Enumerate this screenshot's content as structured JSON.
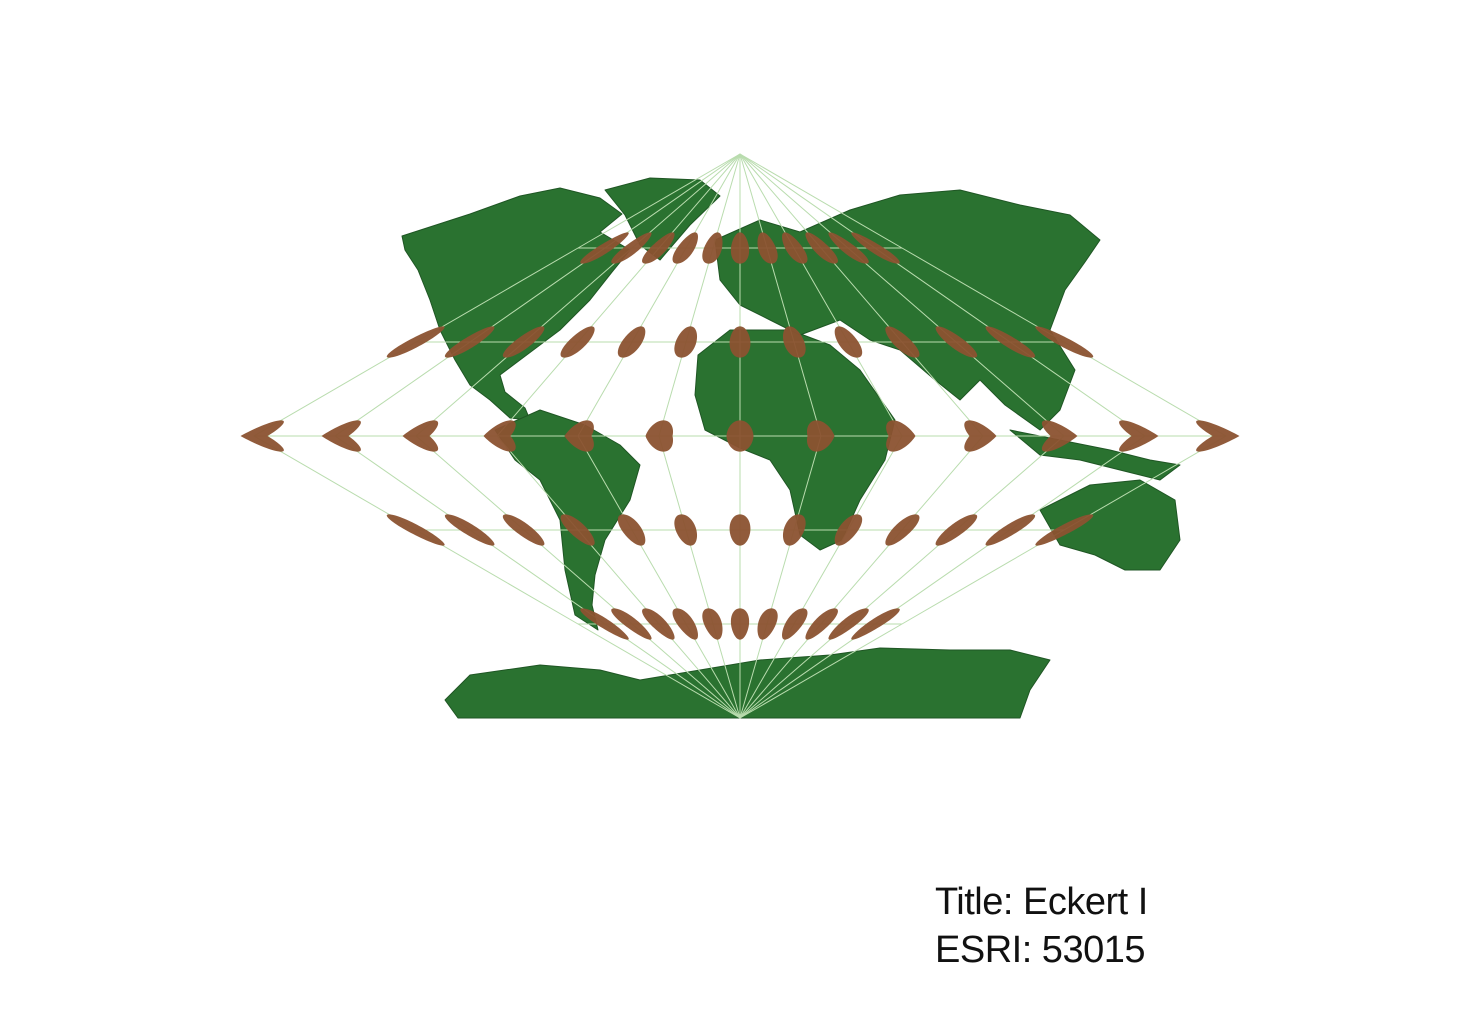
{
  "map": {
    "projection": "Eckert I",
    "graticule_spacing_deg": 30,
    "indicatrix_rows_lat": [
      60,
      30,
      0,
      -30,
      -60
    ],
    "indicatrix_cols_lon": [
      -150,
      -120,
      -90,
      -60,
      -30,
      0,
      30,
      60,
      90,
      120,
      150
    ],
    "colors": {
      "land": "#2a7230",
      "land_outline": "#1f5624",
      "graticule": "#b9dcae",
      "indicatrix": "#8b5230",
      "background": "#ffffff"
    }
  },
  "caption": {
    "title": "Title: Eckert I",
    "code": "ESRI: 53015"
  }
}
